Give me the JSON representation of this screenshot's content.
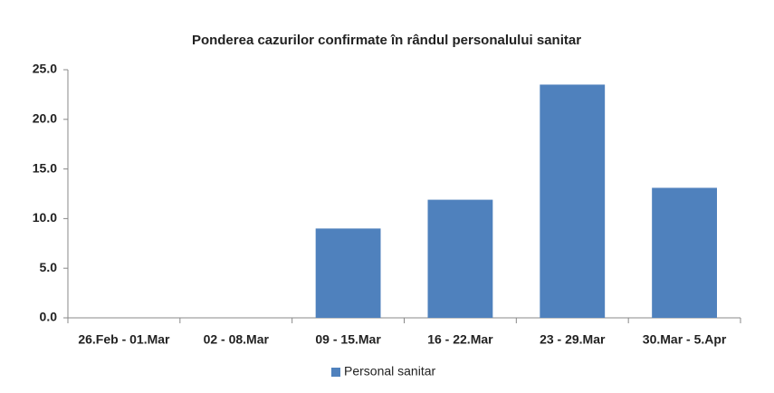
{
  "chart_data": {
    "type": "bar",
    "title": "Ponderea cazurilor confirmate în rândul personalului sanitar",
    "categories": [
      "26.Feb - 01.Mar",
      "02 - 08.Mar",
      "09 - 15.Mar",
      "16 - 22.Mar",
      "23 - 29.Mar",
      "30.Mar - 5.Apr"
    ],
    "series": [
      {
        "name": "Personal sanitar",
        "color": "#4f81bd",
        "values": [
          0,
          0,
          9.0,
          11.9,
          23.5,
          13.1
        ]
      }
    ],
    "ylim": [
      0,
      25
    ],
    "yticks": [
      {
        "value": 0,
        "label": "0.0"
      },
      {
        "value": 5,
        "label": "5.0"
      },
      {
        "value": 10,
        "label": "10.0"
      },
      {
        "value": 15,
        "label": "15.0"
      },
      {
        "value": 20,
        "label": "20.0"
      },
      {
        "value": 25,
        "label": "25.0"
      }
    ],
    "grid": false,
    "legend": "bottom"
  }
}
